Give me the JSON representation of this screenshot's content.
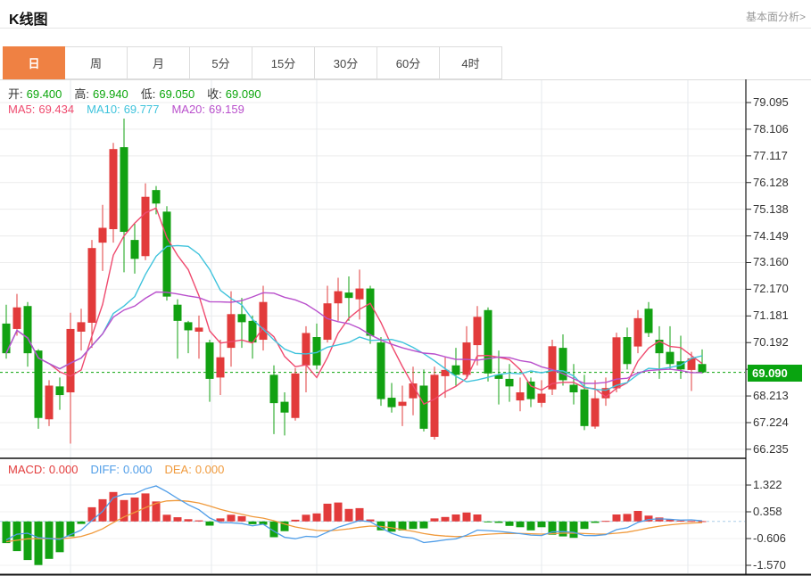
{
  "header": {
    "title": "K线图",
    "link_label": "基本面分析>"
  },
  "tabs": {
    "items": [
      "日",
      "周",
      "月",
      "5分",
      "15分",
      "30分",
      "60分",
      "4时"
    ],
    "active_index": 0
  },
  "legend": {
    "ohlc": [
      {
        "label": "开:",
        "value": "69.400"
      },
      {
        "label": "高:",
        "value": "69.940"
      },
      {
        "label": "低:",
        "value": "69.050"
      },
      {
        "label": "收:",
        "value": "69.090"
      }
    ],
    "ma": [
      {
        "label": "MA5:",
        "value": "69.434",
        "color": "#ef4a6e"
      },
      {
        "label": "MA10:",
        "value": "69.777",
        "color": "#3fc3dc"
      },
      {
        "label": "MA20:",
        "value": "69.159",
        "color": "#b950cc"
      }
    ],
    "macd": [
      {
        "label": "MACD:",
        "value": "0.000",
        "color": "#e23b3b"
      },
      {
        "label": "DIFF:",
        "value": "0.000",
        "color": "#4f9de8"
      },
      {
        "label": "DEA:",
        "value": "0.000",
        "color": "#f09a3c"
      }
    ]
  },
  "chart_data": {
    "type": "candlestick",
    "title": "K线图",
    "timeframe_selected": "日",
    "last_price": 69.09,
    "last_price_label": "69.090",
    "y_axis_labels": [
      "79.095",
      "78.106",
      "77.117",
      "76.128",
      "75.138",
      "74.149",
      "73.160",
      "72.170",
      "71.181",
      "70.192",
      "68.213",
      "67.224",
      "66.235"
    ],
    "y_axis_min": 66.235,
    "y_axis_max": 79.095,
    "ma_periods": [
      5,
      10,
      20
    ],
    "candles_ohlc": [
      [
        70.9,
        71.6,
        69.6,
        69.8
      ],
      [
        70.7,
        72.0,
        70.45,
        71.5
      ],
      [
        71.55,
        71.7,
        69.3,
        69.8
      ],
      [
        69.9,
        69.95,
        67.0,
        67.4
      ],
      [
        67.35,
        68.8,
        67.1,
        68.6
      ],
      [
        68.57,
        68.9,
        67.7,
        68.25
      ],
      [
        68.35,
        71.3,
        66.45,
        70.7
      ],
      [
        70.6,
        71.45,
        69.9,
        70.95
      ],
      [
        70.93,
        74.0,
        70.0,
        73.7
      ],
      [
        73.9,
        75.3,
        72.85,
        74.45
      ],
      [
        74.4,
        77.6,
        73.9,
        77.37
      ],
      [
        77.44,
        78.5,
        72.8,
        74.3
      ],
      [
        74.0,
        74.6,
        72.75,
        73.3
      ],
      [
        73.4,
        76.1,
        73.25,
        75.6
      ],
      [
        75.85,
        76.0,
        74.95,
        75.35
      ],
      [
        75.05,
        75.25,
        71.75,
        71.9
      ],
      [
        71.6,
        71.8,
        69.6,
        71.0
      ],
      [
        70.95,
        71.0,
        69.8,
        70.65
      ],
      [
        70.6,
        71.2,
        69.6,
        70.75
      ],
      [
        70.2,
        70.3,
        68.0,
        68.85
      ],
      [
        68.9,
        70.3,
        68.25,
        69.65
      ],
      [
        70.0,
        72.1,
        69.3,
        71.25
      ],
      [
        71.25,
        71.85,
        70.0,
        70.95
      ],
      [
        71.0,
        71.2,
        69.6,
        70.2
      ],
      [
        70.3,
        72.3,
        69.9,
        71.7
      ],
      [
        69.0,
        69.35,
        66.8,
        67.95
      ],
      [
        68.0,
        68.35,
        66.75,
        67.6
      ],
      [
        67.4,
        69.25,
        67.3,
        69.05
      ],
      [
        69.35,
        70.8,
        68.35,
        70.55
      ],
      [
        70.4,
        70.9,
        69.2,
        69.35
      ],
      [
        70.3,
        72.3,
        70.2,
        71.65
      ],
      [
        71.65,
        72.6,
        71.0,
        72.1
      ],
      [
        72.05,
        72.65,
        71.0,
        71.85
      ],
      [
        71.8,
        72.9,
        71.05,
        72.2
      ],
      [
        72.2,
        72.3,
        70.15,
        70.45
      ],
      [
        70.2,
        70.4,
        67.85,
        68.1
      ],
      [
        68.15,
        68.7,
        67.6,
        67.8
      ],
      [
        67.85,
        68.6,
        67.1,
        68.0
      ],
      [
        68.13,
        69.3,
        67.5,
        68.68
      ],
      [
        68.6,
        69.2,
        66.9,
        67.0
      ],
      [
        66.7,
        69.3,
        66.6,
        69.0
      ],
      [
        68.95,
        69.65,
        68.15,
        69.18
      ],
      [
        69.35,
        70.0,
        68.6,
        69.0
      ],
      [
        69.0,
        70.8,
        68.85,
        70.2
      ],
      [
        70.1,
        71.55,
        69.35,
        71.15
      ],
      [
        71.4,
        71.5,
        68.75,
        69.05
      ],
      [
        69.0,
        69.9,
        67.9,
        68.85
      ],
      [
        68.85,
        69.4,
        68.0,
        68.57
      ],
      [
        68.05,
        68.9,
        67.65,
        68.35
      ],
      [
        68.75,
        68.9,
        67.8,
        68.1
      ],
      [
        67.96,
        68.8,
        67.8,
        68.3
      ],
      [
        68.46,
        70.3,
        68.25,
        70.06
      ],
      [
        70.0,
        70.5,
        68.6,
        68.8
      ],
      [
        68.63,
        69.4,
        67.9,
        68.35
      ],
      [
        68.46,
        69.0,
        66.95,
        67.1
      ],
      [
        67.08,
        68.8,
        67.0,
        68.13
      ],
      [
        68.13,
        68.9,
        67.85,
        68.51
      ],
      [
        68.5,
        70.56,
        68.35,
        70.39
      ],
      [
        70.4,
        70.75,
        69.2,
        69.4
      ],
      [
        70.05,
        71.4,
        69.8,
        71.1
      ],
      [
        71.45,
        71.7,
        70.4,
        70.55
      ],
      [
        70.3,
        70.8,
        68.85,
        69.8
      ],
      [
        69.85,
        70.8,
        69.2,
        69.4
      ],
      [
        69.5,
        70.45,
        68.85,
        69.2
      ],
      [
        69.18,
        69.85,
        68.4,
        69.61
      ],
      [
        69.4,
        69.94,
        69.05,
        69.09
      ]
    ],
    "macd_panel": {
      "type": "bar",
      "y_axis_labels": [
        "1.322",
        "0.358",
        "-0.606",
        "-1.570"
      ],
      "values": [
        -0.78,
        -1.07,
        -1.39,
        -1.57,
        -1.35,
        -1.11,
        -0.54,
        -0.09,
        0.51,
        0.8,
        1.06,
        0.77,
        0.86,
        1.01,
        0.72,
        0.24,
        0.15,
        0.08,
        0.04,
        -0.15,
        0.11,
        0.24,
        0.19,
        -0.1,
        -0.12,
        -0.57,
        -0.35,
        0.06,
        0.24,
        0.29,
        0.64,
        0.68,
        0.45,
        0.48,
        0.07,
        -0.32,
        -0.37,
        -0.32,
        -0.27,
        -0.25,
        0.11,
        0.16,
        0.25,
        0.32,
        0.25,
        -0.02,
        -0.05,
        -0.16,
        -0.21,
        -0.32,
        -0.21,
        -0.48,
        -0.54,
        -0.59,
        -0.27,
        -0.05,
        0.02,
        0.25,
        0.27,
        0.38,
        0.21,
        0.14,
        0.07,
        0.03,
        0.02,
        0.01
      ]
    }
  },
  "colors": {
    "up": "#e23b3b",
    "down": "#12a112",
    "badge": "#09a410",
    "price_line": "#0aa30a",
    "ma5": "#ef4a6e",
    "ma10": "#3fc3dc",
    "ma20": "#b950cc",
    "diff": "#4f9de8",
    "dea": "#f09a3c",
    "tab_active": "#ef8143",
    "ohlc_value": "#0ca60c"
  }
}
